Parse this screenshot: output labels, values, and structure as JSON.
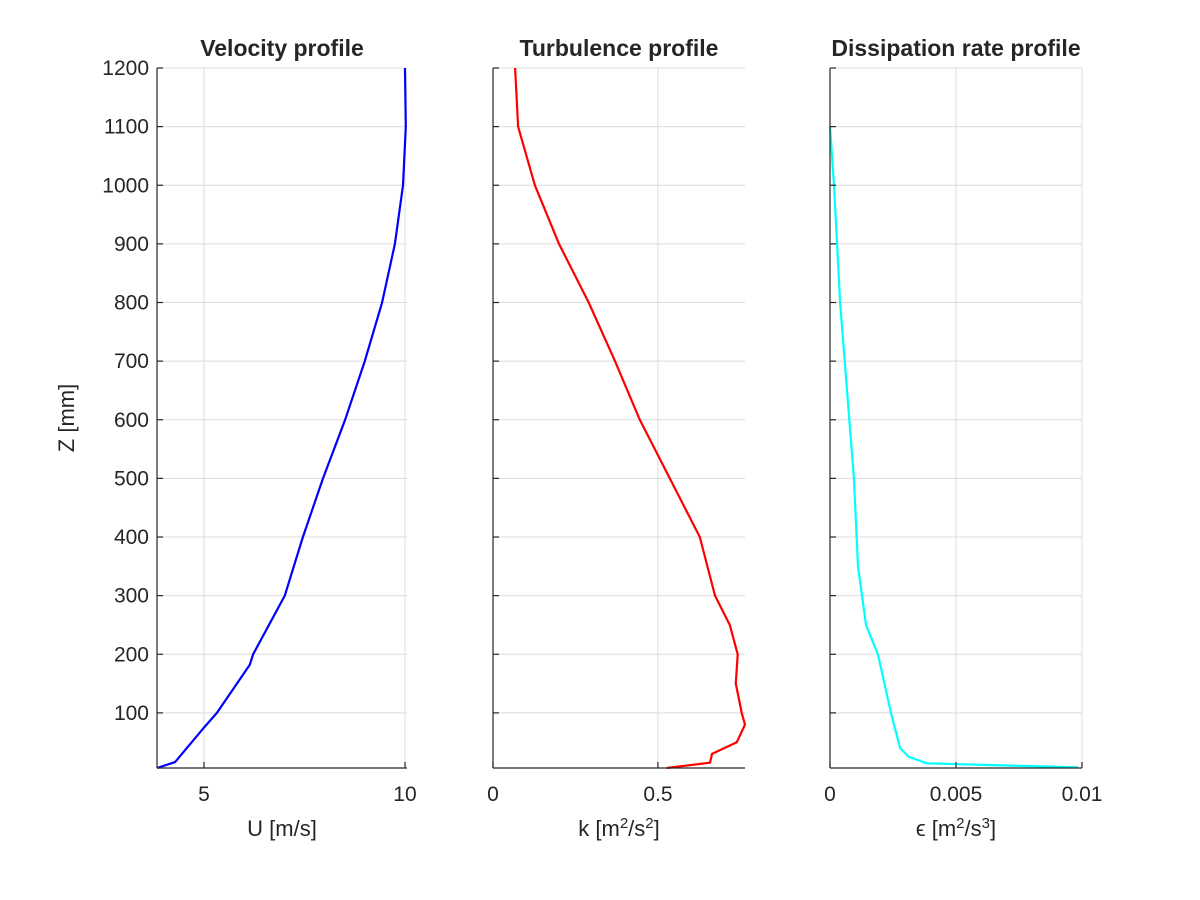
{
  "chart_data": [
    {
      "type": "line",
      "title": "Velocity profile",
      "xlabel": "U [m/s]",
      "ylabel": "Z [mm]",
      "xlim": [
        3.83,
        10.05
      ],
      "ylim": [
        6,
        1200
      ],
      "xticks": [
        5,
        10
      ],
      "xtick_labels": [
        "5",
        "10"
      ],
      "yticks": [
        100,
        200,
        300,
        400,
        500,
        600,
        700,
        800,
        900,
        1000,
        1100,
        1200
      ],
      "ytick_labels": [
        "100",
        "200",
        "300",
        "400",
        "500",
        "600",
        "700",
        "800",
        "900",
        "1000",
        "1100",
        "1200"
      ],
      "grid": true,
      "color": "#0000ff",
      "series": [
        {
          "x": [
            3.83,
            4.28,
            4.95,
            5.32,
            6.14,
            6.22,
            7.01,
            7.46,
            7.96,
            8.51,
            9.0,
            9.43,
            9.75,
            9.95,
            10.02,
            10.0
          ],
          "y": [
            6,
            16,
            71,
            100,
            182,
            200,
            300,
            400,
            500,
            600,
            700,
            800,
            900,
            1000,
            1100,
            1200
          ]
        }
      ]
    },
    {
      "type": "line",
      "title": "Turbulence profile",
      "xlabel": "k  [m^2/s^2]",
      "ylabel": "",
      "xlim": [
        0,
        0.764
      ],
      "ylim": [
        6,
        1200
      ],
      "xticks": [
        0,
        0.5
      ],
      "xtick_labels": [
        "0",
        "0.5"
      ],
      "yticks": [
        100,
        200,
        300,
        400,
        500,
        600,
        700,
        800,
        900,
        1000,
        1100,
        1200
      ],
      "ytick_labels": [],
      "grid": true,
      "color": "#ff0000",
      "series": [
        {
          "x": [
            0.527,
            0.658,
            0.664,
            0.739,
            0.764,
            0.754,
            0.736,
            0.742,
            0.718,
            0.673,
            0.627,
            0.536,
            0.445,
            0.37,
            0.29,
            0.2,
            0.127,
            0.076,
            0.067
          ],
          "y": [
            6,
            15,
            30,
            50,
            80,
            100,
            150,
            200,
            250,
            300,
            400,
            500,
            600,
            700,
            800,
            900,
            1000,
            1100,
            1200
          ]
        }
      ]
    },
    {
      "type": "line",
      "title": "Dissipation rate profile",
      "xlabel": "ϵ  [m^2/s^3]",
      "ylabel": "",
      "xlim": [
        0,
        0.01
      ],
      "ylim": [
        6,
        1200
      ],
      "xticks": [
        0,
        0.005,
        0.01
      ],
      "xtick_labels": [
        "0",
        "0.005",
        "0.01"
      ],
      "yticks": [
        100,
        200,
        300,
        400,
        500,
        600,
        700,
        800,
        900,
        1000,
        1100,
        1200
      ],
      "ytick_labels": [],
      "grid": true,
      "color": "#00ffff",
      "series": [
        {
          "x": [
            0.00984,
            0.00385,
            0.00313,
            0.00278,
            0.00242,
            0.0019,
            0.00143,
            0.00111,
            0.00095,
            0.0004,
            0.00016,
            0.0
          ],
          "y": [
            7,
            14,
            25,
            40,
            100,
            200,
            250,
            350,
            500,
            800,
            1000,
            1100
          ]
        }
      ]
    }
  ]
}
